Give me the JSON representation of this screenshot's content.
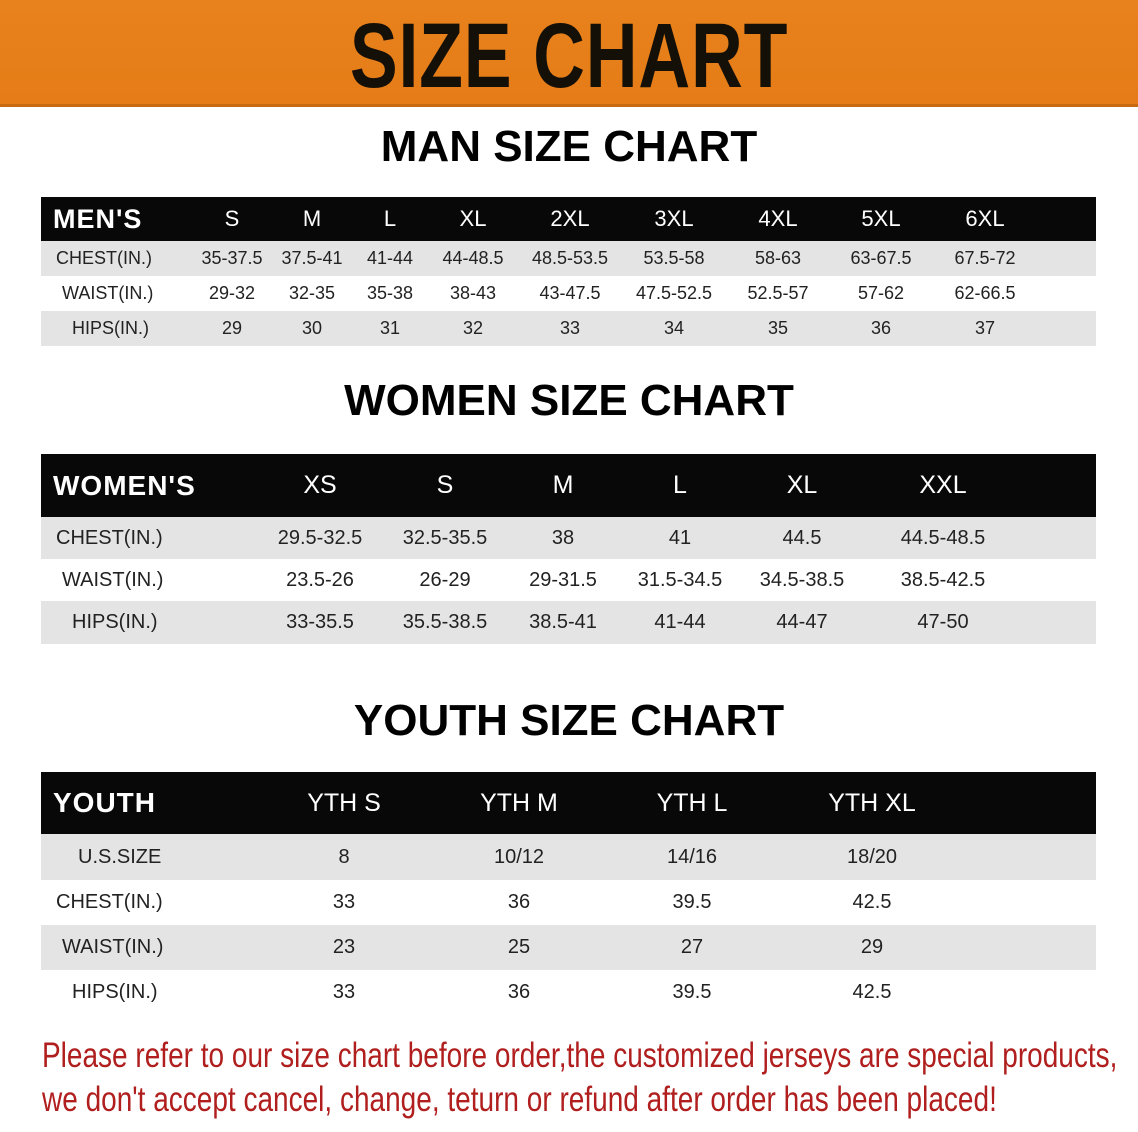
{
  "banner": {
    "title": "SIZE CHART",
    "color": "#e8821c"
  },
  "men": {
    "title": "MAN SIZE CHART",
    "corner": "MEN'S",
    "sizes": [
      "S",
      "M",
      "L",
      "XL",
      "2XL",
      "3XL",
      "4XL",
      "5XL",
      "6XL"
    ],
    "rows": [
      {
        "label": "CHEST(IN.)",
        "values": [
          "35-37.5",
          "37.5-41",
          "41-44",
          "44-48.5",
          "48.5-53.5",
          "53.5-58",
          "58-63",
          "63-67.5",
          "67.5-72"
        ]
      },
      {
        "label": "WAIST(IN.)",
        "values": [
          "29-32",
          "32-35",
          "35-38",
          "38-43",
          "43-47.5",
          "47.5-52.5",
          "52.5-57",
          "57-62",
          "62-66.5"
        ]
      },
      {
        "label": "HIPS(IN.)",
        "values": [
          "29",
          "30",
          "31",
          "32",
          "33",
          "34",
          "35",
          "36",
          "37"
        ]
      }
    ]
  },
  "women": {
    "title": "WOMEN SIZE CHART",
    "corner": "WOMEN'S",
    "sizes": [
      "XS",
      "S",
      "M",
      "L",
      "XL",
      "XXL"
    ],
    "rows": [
      {
        "label": "CHEST(IN.)",
        "values": [
          "29.5-32.5",
          "32.5-35.5",
          "38",
          "41",
          "44.5",
          "44.5-48.5"
        ]
      },
      {
        "label": "WAIST(IN.)",
        "values": [
          "23.5-26",
          "26-29",
          "29-31.5",
          "31.5-34.5",
          "34.5-38.5",
          "38.5-42.5"
        ]
      },
      {
        "label": "HIPS(IN.)",
        "values": [
          "33-35.5",
          "35.5-38.5",
          "38.5-41",
          "41-44",
          "44-47",
          "47-50"
        ]
      }
    ]
  },
  "youth": {
    "title": "YOUTH SIZE CHART",
    "corner": "YOUTH",
    "sizes": [
      "YTH S",
      "YTH M",
      "YTH L",
      "YTH XL"
    ],
    "rows": [
      {
        "label": "U.S.SIZE",
        "values": [
          "8",
          "10/12",
          "14/16",
          "18/20"
        ]
      },
      {
        "label": "CHEST(IN.)",
        "values": [
          "33",
          "36",
          "39.5",
          "42.5"
        ]
      },
      {
        "label": "WAIST(IN.)",
        "values": [
          "23",
          "25",
          "27",
          "29"
        ]
      },
      {
        "label": "HIPS(IN.)",
        "values": [
          "33",
          "36",
          "39.5",
          "42.5"
        ]
      }
    ]
  },
  "notice": {
    "line1": "Please refer to our size chart before order,the customized jerseys are special products,",
    "line2": "we don't accept cancel, change, teturn or refund after order has been placed!",
    "color": "#b01e1e"
  }
}
